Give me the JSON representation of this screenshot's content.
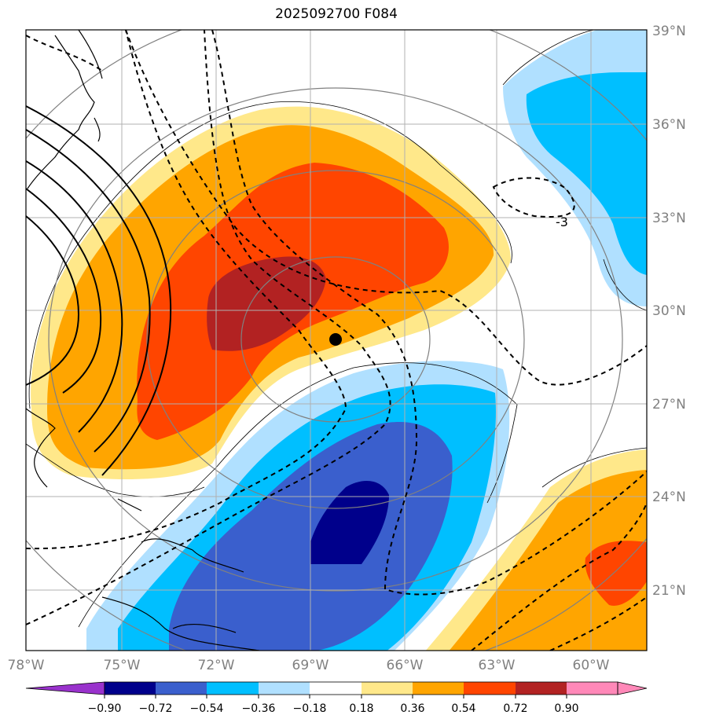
{
  "title": "2025092700 F084",
  "map": {
    "lon_labels": [
      "78°W",
      "75°W",
      "72°W",
      "69°W",
      "66°W",
      "63°W",
      "60°W"
    ],
    "lat_labels": [
      "39°N",
      "36°N",
      "33°N",
      "30°N",
      "27°N",
      "24°N",
      "21°N"
    ],
    "contour_label": "-3",
    "marker_label": "",
    "colors": {
      "neg_extreme": "#9932cc",
      "neg4": "#00008b",
      "neg3": "#3a5fcd",
      "neg2": "#00bfff",
      "neg1": "#b0e0ff",
      "zero": "#ffffff",
      "pos1": "#ffe88a",
      "pos2": "#ffa500",
      "pos3": "#ff4500",
      "pos4": "#b22222",
      "pos_extreme": "#ff88b8"
    }
  },
  "colorbar": {
    "labels": [
      "−0.90",
      "−0.72",
      "−0.54",
      "−0.36",
      "−0.18",
      "0.18",
      "0.36",
      "0.54",
      "0.72",
      "0.90"
    ]
  }
}
